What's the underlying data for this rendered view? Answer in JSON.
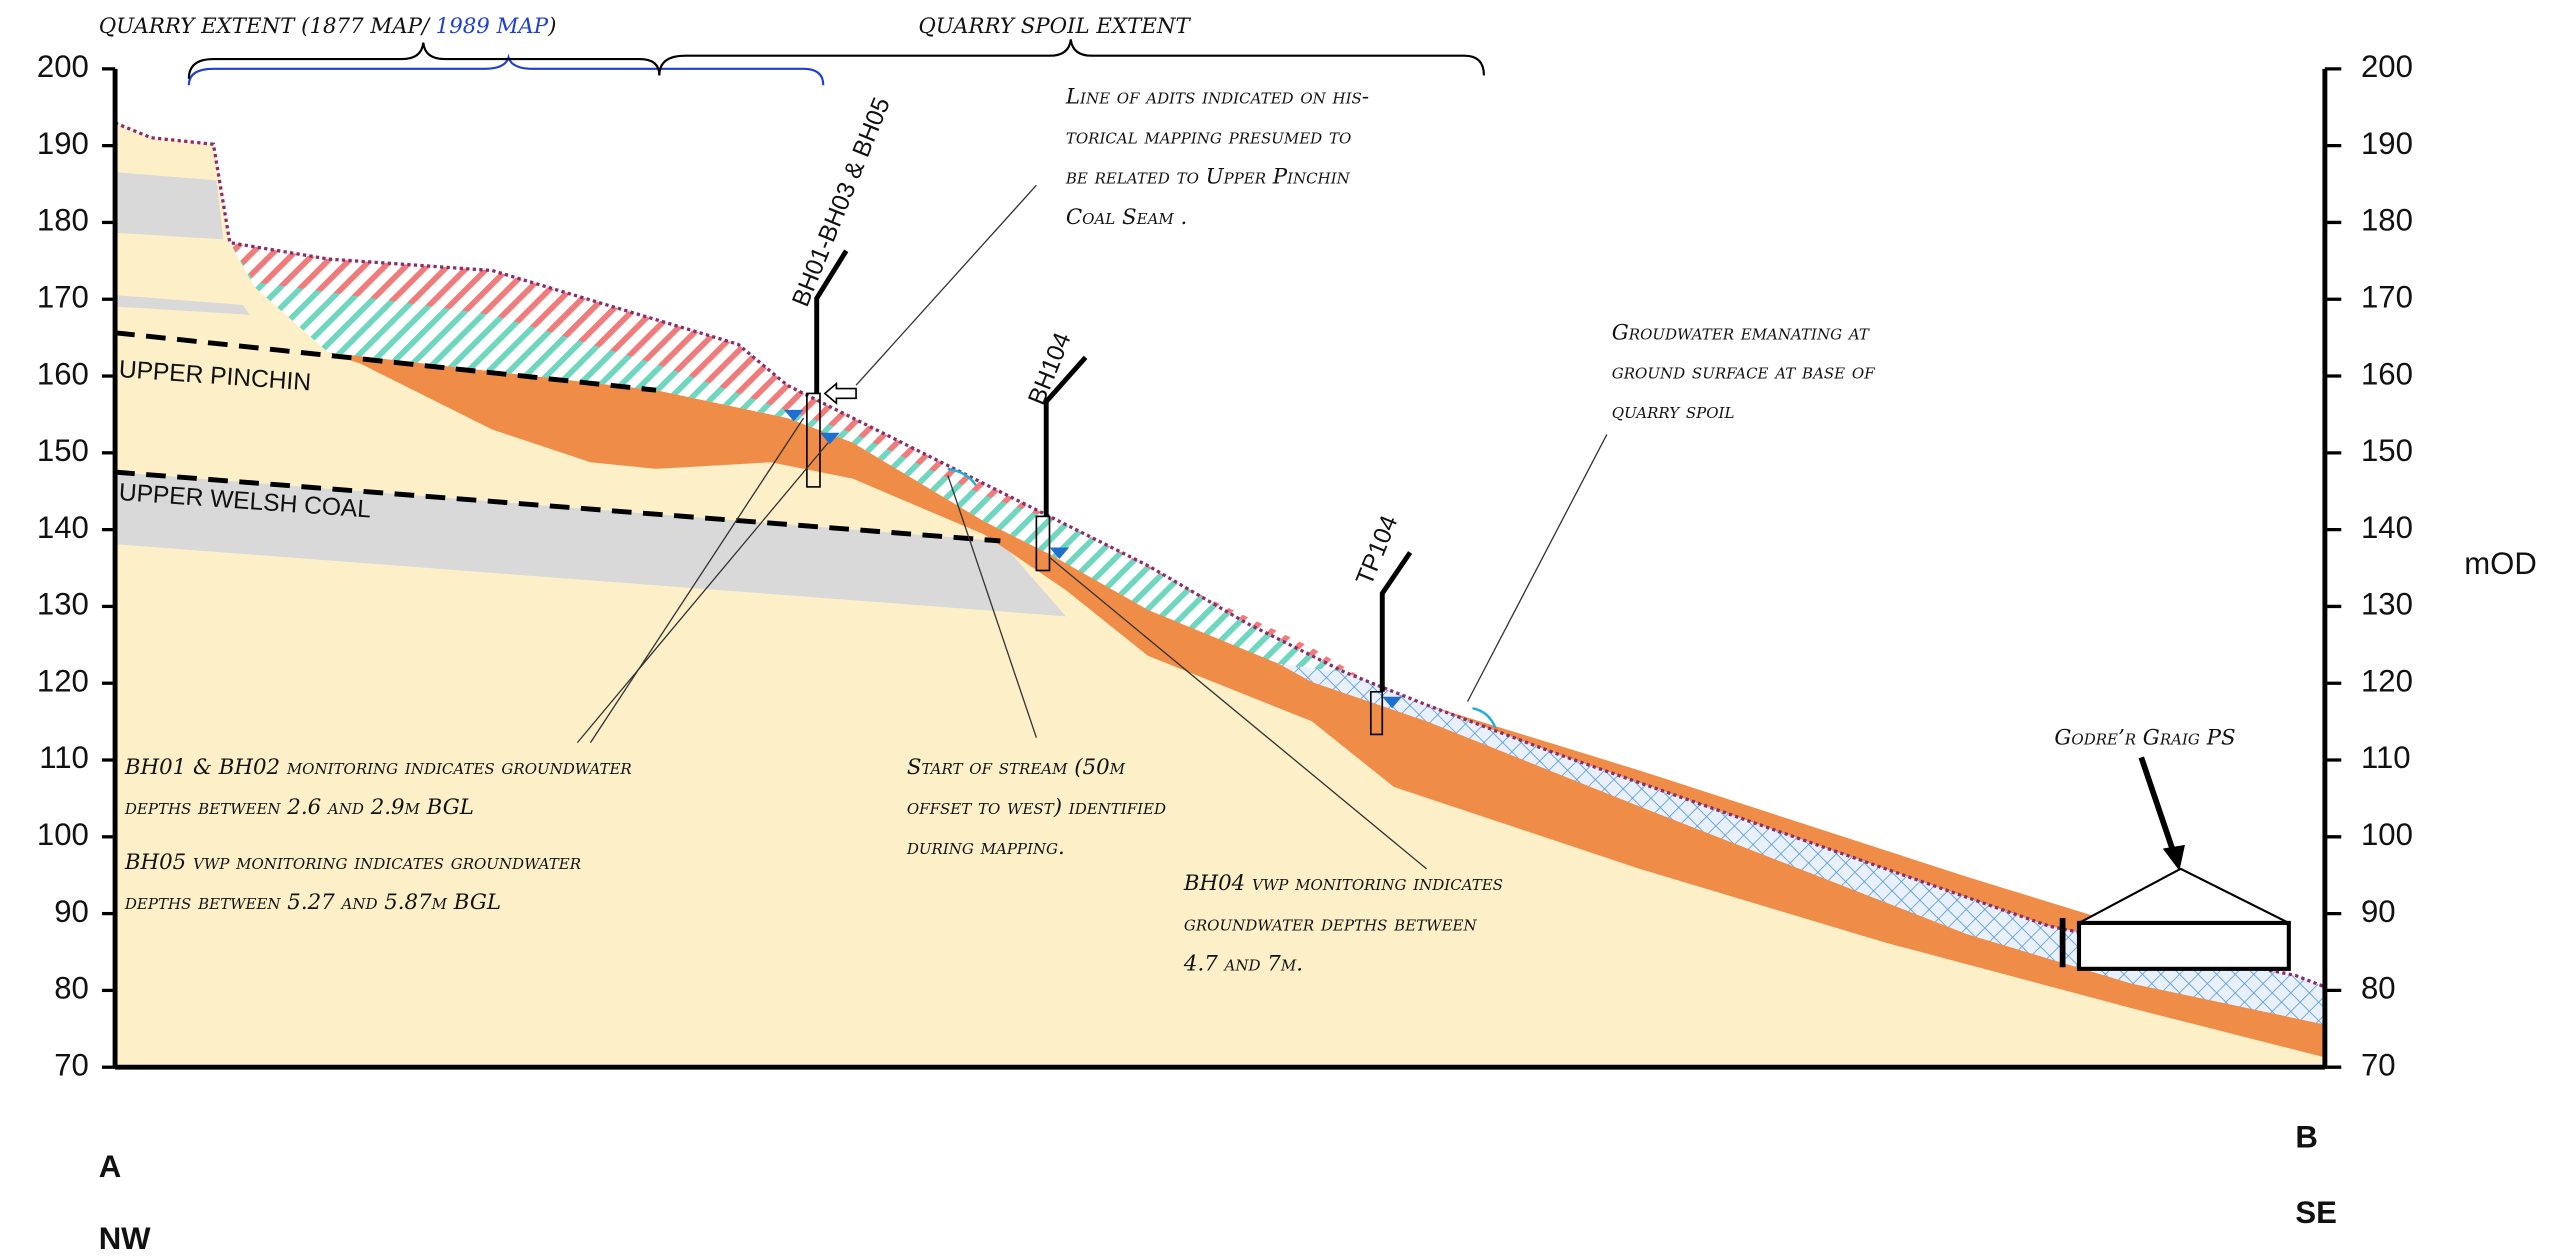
{
  "axis": {
    "ylim": [
      70,
      200
    ],
    "left_ticks": [
      70,
      80,
      90,
      100,
      110,
      120,
      130,
      140,
      150,
      160,
      170,
      180,
      190,
      200
    ],
    "right_ticks": [
      70,
      80,
      90,
      100,
      110,
      120,
      130,
      140,
      150,
      160,
      170,
      180,
      190,
      200
    ],
    "unit": "mOD"
  },
  "header": {
    "quarry_extent": [
      "QUARRY EXTENT (1877 MAP/",
      "1989 MAP",
      ")"
    ],
    "quarry_spoil_extent": "QUARRY SPOIL EXTENT"
  },
  "strata": {
    "upper_pinchin": "UPPER PINCHIN",
    "upper_welsh_coal": "UPPER WELSH COAL"
  },
  "boreholes": [
    "BH01-BH03 & BH05",
    "BH104",
    "TP104"
  ],
  "notes": {
    "adits": [
      "Line of adits indicated on his-",
      "torical mapping presumed to",
      "be related to Upper Pinchin",
      "Coal Seam ."
    ],
    "groundwater_emanating": [
      "Groudwater emanating  at",
      "ground surface at base of",
      "quarry spoil"
    ],
    "bh01_bh02": [
      "BH01 & BH02 monitoring indicates groundwater",
      "depths between 2.6 and 2.9m BGL"
    ],
    "bh05": [
      "BH05 vwp monitoring indicates groundwater",
      "depths between 5.27 and 5.87m BGL"
    ],
    "stream": [
      "Start of stream (50m",
      "offset to west) identified",
      "during mapping."
    ],
    "bh04": [
      "BH04 vwp monitoring indicates",
      "groundwater depths between",
      "4.7 and 7m."
    ],
    "building": "Godre’r Graig PS"
  },
  "ends": {
    "start": "A",
    "start_dir": "NW",
    "end": "B",
    "end_dir": "SE"
  }
}
